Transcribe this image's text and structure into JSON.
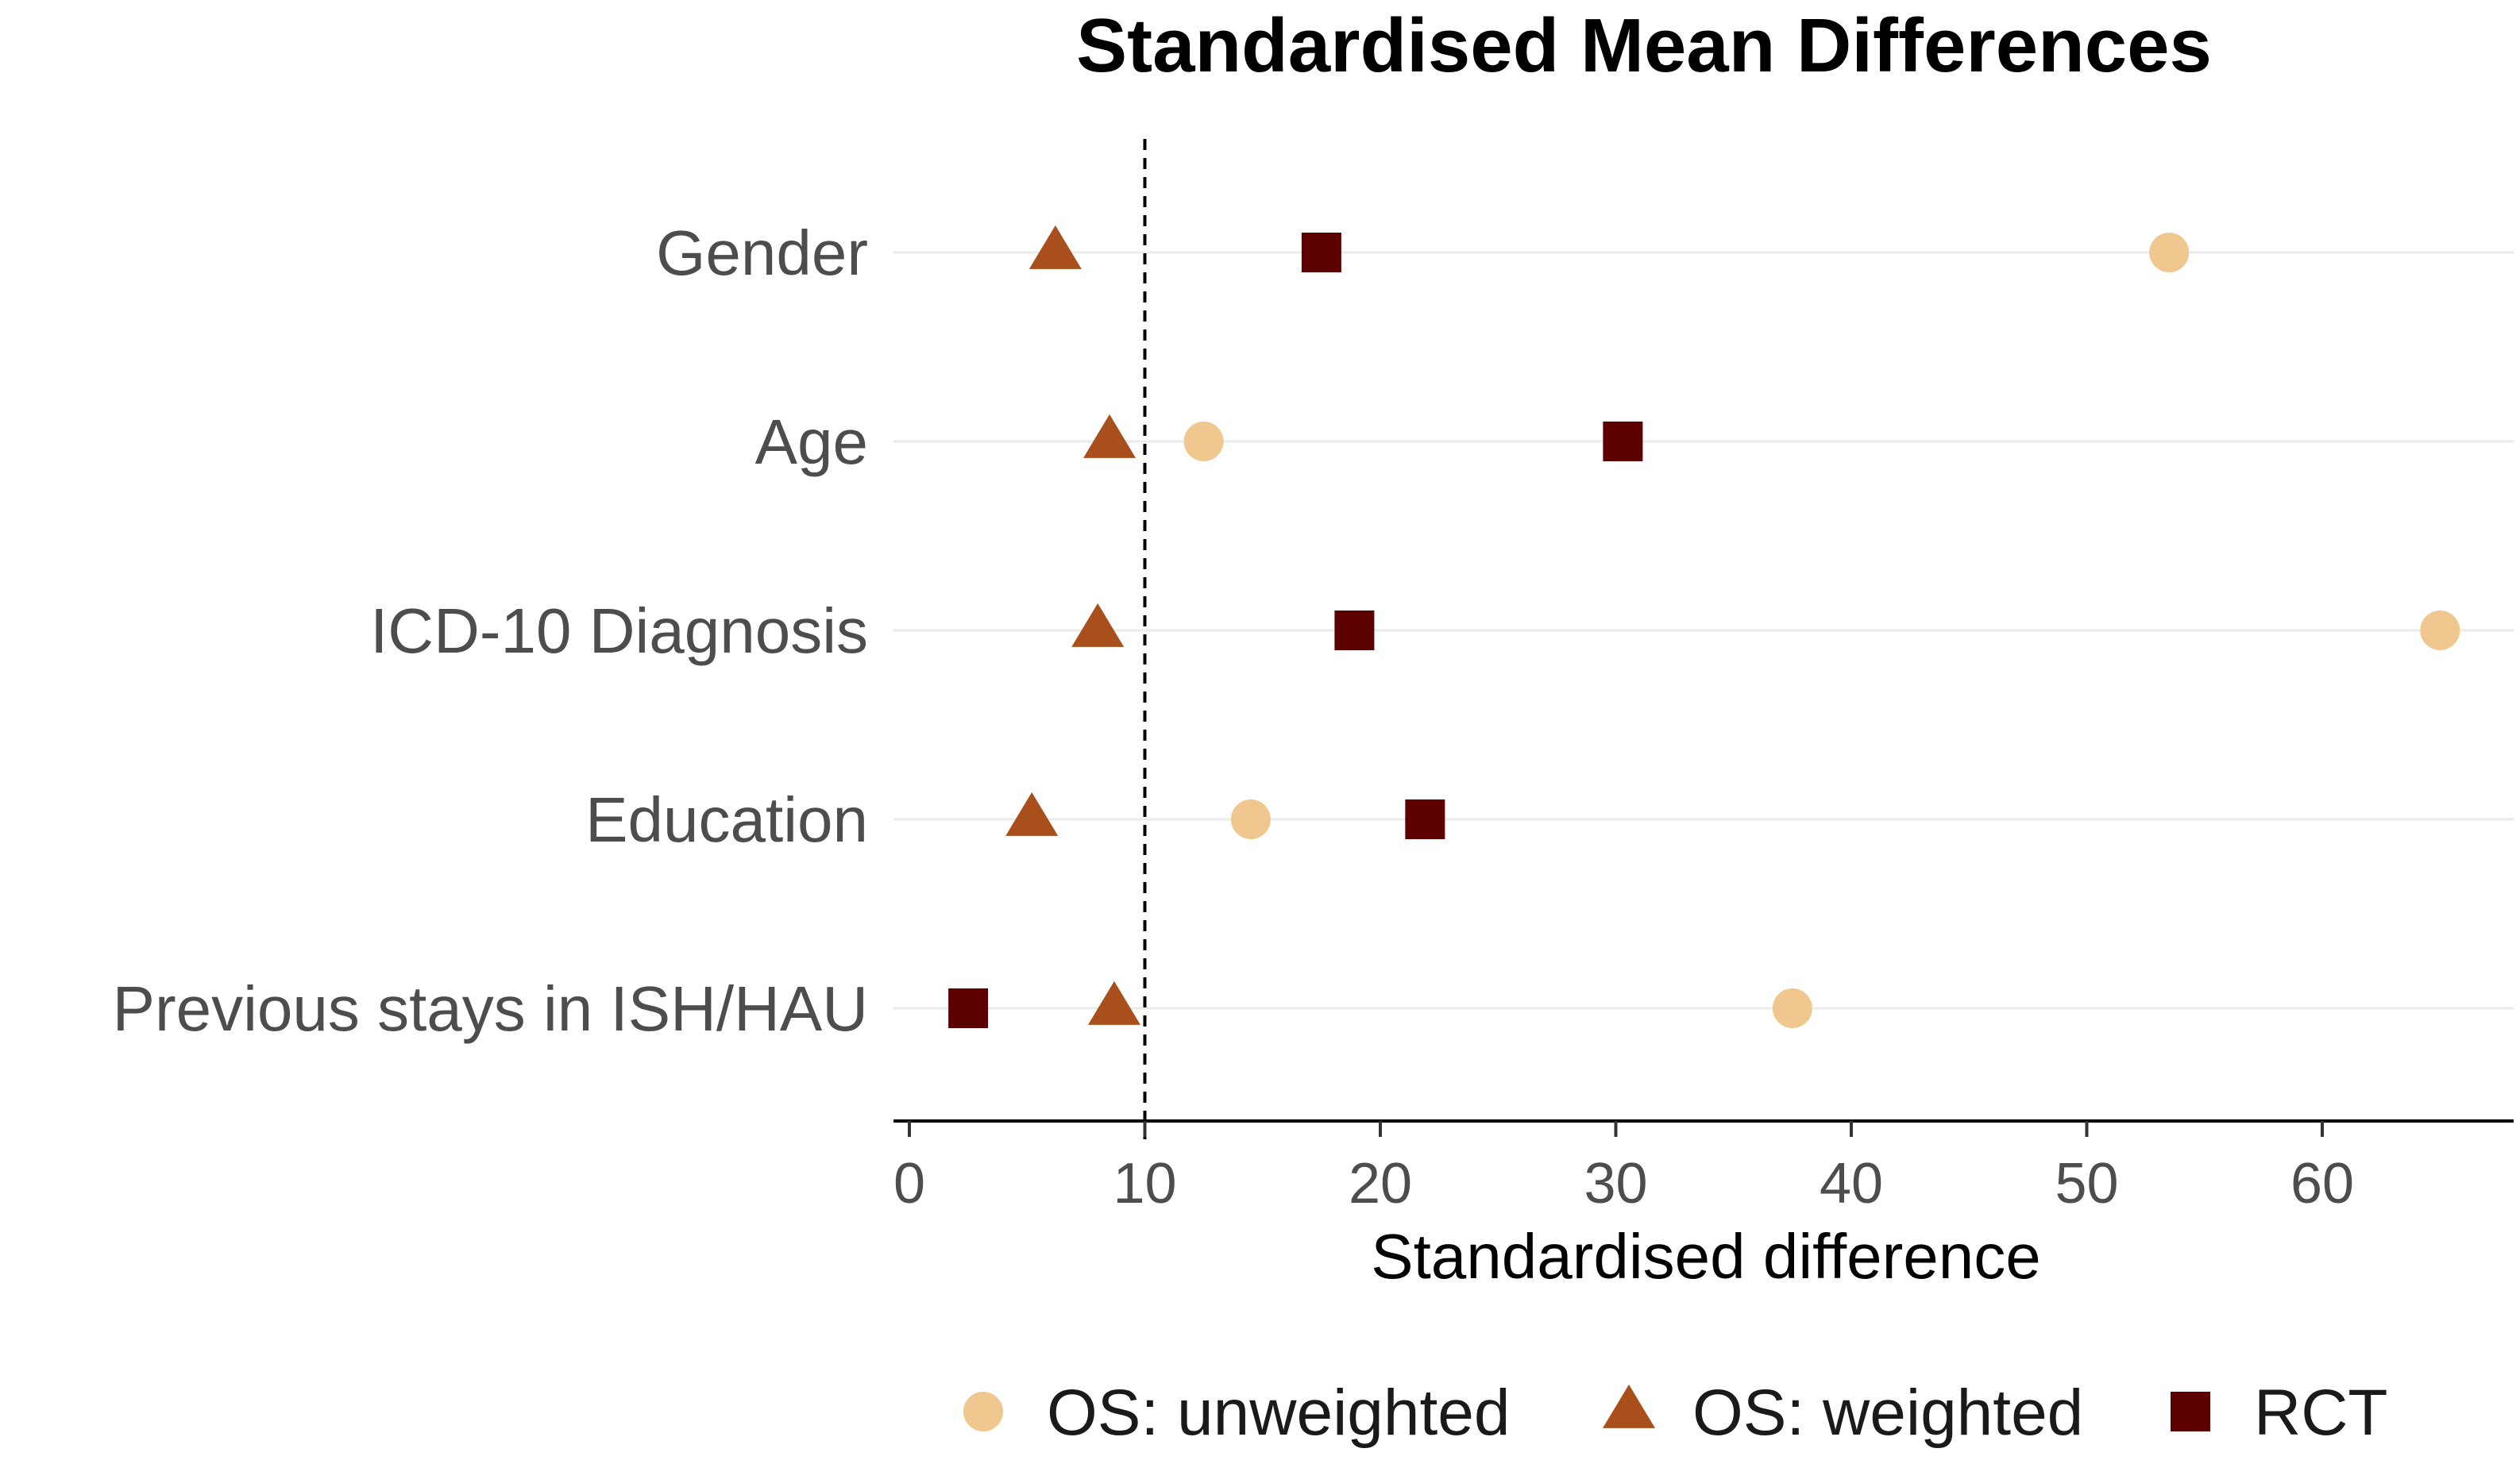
{
  "chart_data": {
    "type": "scatter",
    "title": "Standardised Mean Differences",
    "xlabel": "Standardised difference",
    "ylabel": "",
    "xlim": [
      -0.5,
      68.5
    ],
    "xticks": [
      0,
      10,
      20,
      30,
      40,
      50,
      60
    ],
    "reference_line": 10,
    "categories": [
      "Gender",
      "Age",
      "ICD-10 Diagnosis",
      "Education",
      "Previous stays in ISH/HAU"
    ],
    "series": [
      {
        "name": "OS: unweighted",
        "marker": "circle",
        "color": "#f0c78f",
        "values": [
          53.5,
          12.5,
          65.0,
          14.5,
          37.5
        ]
      },
      {
        "name": "OS: weighted",
        "marker": "triangle",
        "color": "#a84f1b",
        "values": [
          6.2,
          8.5,
          8.0,
          5.2,
          8.7
        ]
      },
      {
        "name": "RCT",
        "marker": "square",
        "color": "#5c0000",
        "values": [
          17.5,
          30.3,
          18.9,
          21.9,
          2.5
        ]
      }
    ],
    "legend_position": "bottom",
    "grid": true
  }
}
